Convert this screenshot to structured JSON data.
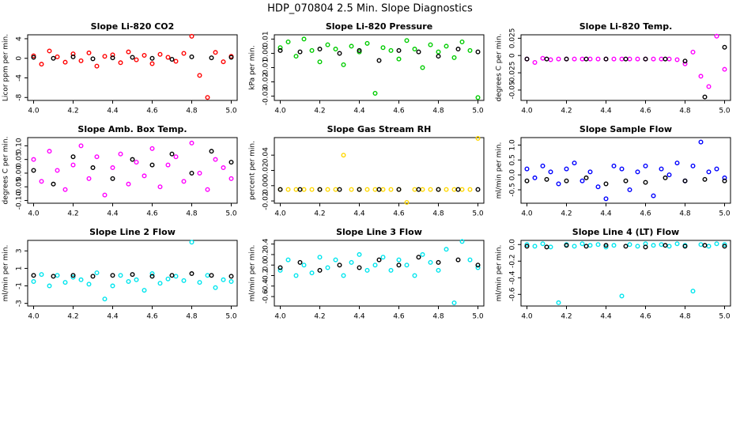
{
  "title": "HDP_070804  2.5 Min. Slope Diagnostics",
  "chart_data": [
    {
      "type": "scatter",
      "title": "Slope Li-820 CO2",
      "ylabel": "Licor ppm per min.",
      "xlim": [
        3.97,
        5.03
      ],
      "xticks": [
        {
          "value": 4,
          "label": "4.0"
        },
        4.2,
        4.4,
        4.6,
        4.8,
        {
          "value": 5,
          "label": "5.0"
        }
      ],
      "ylim": [
        -8.6,
        4.8
      ],
      "yticks": [
        -8,
        -4,
        0,
        4
      ],
      "series": [
        {
          "color": "#ff0000",
          "x": [
            4.0,
            4.04,
            4.08,
            4.12,
            4.16,
            4.2,
            4.24,
            4.28,
            4.32,
            4.36,
            4.4,
            4.44,
            4.48,
            4.52,
            4.56,
            4.6,
            4.64,
            4.68,
            4.72,
            4.76,
            4.8,
            4.84,
            4.88,
            4.92,
            4.96,
            5.0
          ],
          "values": [
            0.5,
            -1.2,
            1.5,
            0.3,
            -0.8,
            0.9,
            -0.5,
            1.1,
            -1.6,
            0.4,
            0.7,
            -0.9,
            1.3,
            -0.3,
            0.6,
            -1.1,
            0.8,
            0.2,
            -0.6,
            1.0,
            4.5,
            -3.5,
            -8,
            1.2,
            -0.7,
            0.4
          ]
        },
        {
          "color": "#000000",
          "x": [
            4.0,
            4.1,
            4.2,
            4.3,
            4.4,
            4.5,
            4.6,
            4.7,
            4.8,
            4.9,
            5.0
          ],
          "values": [
            0.2,
            0,
            0.3,
            -0.1,
            0.1,
            0.2,
            0,
            -0.2,
            0.3,
            0.1,
            0.2
          ]
        }
      ]
    },
    {
      "type": "scatter",
      "title": "Slope Li-820 Pressure",
      "ylabel": "kPa per min.",
      "xlim": [
        3.97,
        5.03
      ],
      "xticks": [
        {
          "value": 4,
          "label": "4.0"
        },
        4.2,
        4.4,
        4.6,
        4.8,
        {
          "value": 5,
          "label": "5.0"
        }
      ],
      "ylim": [
        -0.033,
        0.013
      ],
      "yticks": [
        -0.03,
        -0.02,
        -0.01,
        {
          "value": 0,
          "label": "0.00"
        },
        0.01
      ],
      "series": [
        {
          "color": "#00cc00",
          "x": [
            4.0,
            4.04,
            4.08,
            4.12,
            4.16,
            4.2,
            4.24,
            4.28,
            4.32,
            4.36,
            4.4,
            4.44,
            4.48,
            4.52,
            4.56,
            4.6,
            4.64,
            4.68,
            4.72,
            4.76,
            4.8,
            4.84,
            4.88,
            4.92,
            4.96,
            5.0
          ],
          "values": [
            0.004,
            0.008,
            -0.002,
            0.01,
            0.002,
            -0.006,
            0.006,
            0.003,
            -0.008,
            0.005,
            0.001,
            0.007,
            -0.028,
            0.004,
            0.002,
            -0.004,
            0.009,
            0.003,
            -0.01,
            0.006,
            0.001,
            0.005,
            -0.003,
            0.008,
            0.002,
            -0.031
          ]
        },
        {
          "color": "#000000",
          "x": [
            4.0,
            4.1,
            4.2,
            4.3,
            4.4,
            4.5,
            4.6,
            4.7,
            4.8,
            4.9,
            5.0
          ],
          "values": [
            0.002,
            0.001,
            0.003,
            0,
            0.002,
            -0.005,
            0.002,
            0.001,
            -0.002,
            0.003,
            0.001
          ]
        }
      ]
    },
    {
      "type": "scatter",
      "title": "Slope Li-820 Temp.",
      "ylabel": "degrees C per min.",
      "xlim": [
        3.97,
        5.03
      ],
      "xticks": [
        {
          "value": 4,
          "label": "4.0"
        },
        4.2,
        4.4,
        4.6,
        4.8,
        {
          "value": 5,
          "label": "5.0"
        }
      ],
      "ylim": [
        -0.065,
        0.03
      ],
      "yticks": [
        -0.05,
        -0.025,
        0,
        0.025
      ],
      "series": [
        {
          "color": "#ff00ff",
          "x": [
            4.0,
            4.04,
            4.08,
            4.12,
            4.16,
            4.2,
            4.24,
            4.28,
            4.32,
            4.36,
            4.4,
            4.44,
            4.48,
            4.52,
            4.56,
            4.6,
            4.64,
            4.68,
            4.72,
            4.76,
            4.8,
            4.84,
            4.88,
            4.92,
            4.96,
            5.0
          ],
          "values": [
            -0.005,
            -0.01,
            -0.004,
            -0.006,
            -0.005,
            -0.005,
            -0.005,
            -0.005,
            -0.005,
            -0.005,
            -0.005,
            -0.005,
            -0.005,
            -0.005,
            -0.005,
            -0.005,
            -0.005,
            -0.005,
            -0.005,
            -0.006,
            -0.012,
            0.005,
            -0.03,
            -0.045,
            0.028,
            -0.02
          ]
        },
        {
          "color": "#000000",
          "x": [
            4.0,
            4.1,
            4.2,
            4.3,
            4.4,
            4.5,
            4.6,
            4.7,
            4.8,
            4.9,
            5.0
          ],
          "values": [
            -0.005,
            -0.005,
            -0.005,
            -0.005,
            -0.005,
            -0.005,
            -0.005,
            -0.005,
            -0.008,
            -0.06,
            0.012
          ]
        }
      ]
    },
    {
      "type": "scatter",
      "title": "Slope Amb. Box Temp.",
      "ylabel": "degrees C per min.",
      "xlim": [
        3.97,
        5.03
      ],
      "xticks": [
        {
          "value": 4,
          "label": "4.0"
        },
        4.2,
        4.4,
        4.6,
        4.8,
        {
          "value": 5,
          "label": "5.0"
        }
      ],
      "ylim": [
        -0.11,
        0.13
      ],
      "yticks": [
        {
          "value": -0.1,
          "label": "-0.10"
        },
        -0.05,
        {
          "value": 0,
          "label": "0.00"
        },
        0.05,
        {
          "value": 0.1,
          "label": "0.10"
        }
      ],
      "series": [
        {
          "color": "#ff00ff",
          "x": [
            4.0,
            4.04,
            4.08,
            4.12,
            4.16,
            4.2,
            4.24,
            4.28,
            4.32,
            4.36,
            4.4,
            4.44,
            4.48,
            4.52,
            4.56,
            4.6,
            4.64,
            4.68,
            4.72,
            4.76,
            4.8,
            4.84,
            4.88,
            4.92,
            4.96,
            5.0
          ],
          "values": [
            0.05,
            -0.03,
            0.08,
            0.01,
            -0.06,
            0.03,
            0.1,
            -0.02,
            0.06,
            -0.08,
            0.02,
            0.07,
            -0.04,
            0.04,
            -0.01,
            0.09,
            -0.05,
            0.03,
            0.06,
            -0.03,
            0.11,
            0.0,
            -0.06,
            0.05,
            0.02,
            -0.02
          ]
        },
        {
          "color": "#000000",
          "x": [
            4.0,
            4.1,
            4.2,
            4.3,
            4.4,
            4.5,
            4.6,
            4.7,
            4.8,
            4.9,
            5.0
          ],
          "values": [
            0.01,
            -0.04,
            0.06,
            0.02,
            -0.02,
            0.05,
            0.03,
            0.07,
            0.0,
            0.08,
            0.04
          ]
        }
      ]
    },
    {
      "type": "scatter",
      "title": "Slope Gas Stream RH",
      "ylabel": "percent per min.",
      "xlim": [
        3.97,
        5.03
      ],
      "xticks": [
        {
          "value": 4,
          "label": "4.0"
        },
        4.2,
        4.4,
        4.6,
        4.8,
        {
          "value": 5,
          "label": "5.0"
        }
      ],
      "ylim": [
        -0.023,
        0.063
      ],
      "yticks": [
        -0.02,
        {
          "value": 0,
          "label": "0.00"
        },
        0.02,
        0.04
      ],
      "series": [
        {
          "color": "#ffd700",
          "x": [
            4.0,
            4.04,
            4.08,
            4.12,
            4.16,
            4.2,
            4.24,
            4.28,
            4.32,
            4.36,
            4.4,
            4.44,
            4.48,
            4.52,
            4.56,
            4.6,
            4.64,
            4.68,
            4.72,
            4.76,
            4.8,
            4.84,
            4.88,
            4.92,
            4.96,
            5.0
          ],
          "values": [
            -0.005,
            -0.005,
            -0.005,
            -0.005,
            -0.005,
            -0.005,
            -0.005,
            -0.005,
            0.04,
            -0.005,
            -0.005,
            -0.005,
            -0.005,
            -0.005,
            -0.005,
            -0.005,
            -0.022,
            -0.005,
            -0.005,
            -0.005,
            -0.005,
            -0.005,
            -0.005,
            -0.005,
            -0.005,
            0.062
          ]
        },
        {
          "color": "#000000",
          "x": [
            4.0,
            4.1,
            4.2,
            4.3,
            4.4,
            4.5,
            4.6,
            4.7,
            4.8,
            4.9,
            5.0
          ],
          "values": [
            -0.005,
            -0.005,
            -0.005,
            -0.005,
            -0.005,
            -0.005,
            -0.005,
            -0.005,
            -0.005,
            -0.005,
            -0.005
          ]
        }
      ]
    },
    {
      "type": "scatter",
      "title": "Slope Sample Flow",
      "ylabel": "ml/min per min.",
      "xlim": [
        3.97,
        5.03
      ],
      "xticks": [
        {
          "value": 4,
          "label": "4.0"
        },
        4.2,
        4.4,
        4.6,
        4.8,
        {
          "value": 5,
          "label": "5.0"
        }
      ],
      "ylim": [
        -0.95,
        1.25
      ],
      "yticks": [
        -0.5,
        {
          "value": 0,
          "label": "0.0"
        },
        0.5,
        {
          "value": 1,
          "label": "1.0"
        }
      ],
      "series": [
        {
          "color": "#0000ff",
          "x": [
            4.0,
            4.04,
            4.08,
            4.12,
            4.16,
            4.2,
            4.24,
            4.28,
            4.32,
            4.36,
            4.4,
            4.44,
            4.48,
            4.52,
            4.56,
            4.6,
            4.64,
            4.68,
            4.72,
            4.76,
            4.8,
            4.84,
            4.88,
            4.92,
            4.96,
            5.0
          ],
          "values": [
            0.2,
            -0.1,
            0.3,
            0.1,
            -0.3,
            0.2,
            0.4,
            -0.2,
            0.1,
            -0.4,
            -0.8,
            0.3,
            0.2,
            -0.5,
            0.1,
            0.3,
            -0.7,
            0.2,
            0.0,
            0.4,
            -0.2,
            0.3,
            1.1,
            0.1,
            0.2,
            -0.1
          ]
        },
        {
          "color": "#000000",
          "x": [
            4.0,
            4.1,
            4.2,
            4.3,
            4.4,
            4.5,
            4.6,
            4.7,
            4.8,
            4.9,
            5.0
          ],
          "values": [
            -0.2,
            -0.15,
            -0.2,
            -0.1,
            -0.3,
            -0.2,
            -0.25,
            -0.1,
            -0.2,
            -0.15,
            -0.2
          ]
        }
      ]
    },
    {
      "type": "scatter",
      "title": "Slope Line 2 Flow",
      "ylabel": "ml/min per min.",
      "xlim": [
        3.97,
        5.03
      ],
      "xticks": [
        {
          "value": 4,
          "label": "4.0"
        },
        4.2,
        4.4,
        4.6,
        4.8,
        {
          "value": 5,
          "label": "5.0"
        }
      ],
      "ylim": [
        -3.3,
        4.2
      ],
      "yticks": [
        -3,
        -1,
        1,
        3
      ],
      "series": [
        {
          "color": "#00e5ee",
          "x": [
            4.0,
            4.04,
            4.08,
            4.12,
            4.16,
            4.2,
            4.24,
            4.28,
            4.32,
            4.36,
            4.4,
            4.44,
            4.48,
            4.52,
            4.56,
            4.6,
            4.64,
            4.68,
            4.72,
            4.76,
            4.8,
            4.84,
            4.88,
            4.92,
            4.96,
            5.0
          ],
          "values": [
            -0.5,
            0.3,
            -1.0,
            0.2,
            -0.6,
            0.0,
            -0.3,
            -0.8,
            0.5,
            -2.5,
            -1.0,
            0.2,
            -0.5,
            -0.3,
            -1.5,
            0.4,
            -0.7,
            -0.2,
            0.1,
            -0.4,
            4.0,
            -0.6,
            0.2,
            -1.2,
            -0.3,
            -0.5
          ]
        },
        {
          "color": "#000000",
          "x": [
            4.0,
            4.1,
            4.2,
            4.3,
            4.4,
            4.5,
            4.6,
            4.7,
            4.8,
            4.9,
            5.0
          ],
          "values": [
            0.2,
            0.1,
            0.2,
            0.1,
            0.2,
            0.3,
            0.1,
            0.2,
            0.4,
            0.2,
            0.1
          ]
        }
      ]
    },
    {
      "type": "scatter",
      "title": "Slope Line 3 Flow",
      "ylabel": "ml/min per min.",
      "xlim": [
        3.97,
        5.03
      ],
      "xticks": [
        {
          "value": 4,
          "label": "4.0"
        },
        4.2,
        4.4,
        4.6,
        4.8,
        {
          "value": 5,
          "label": "5.0"
        }
      ],
      "ylim": [
        -0.78,
        0.47
      ],
      "yticks": [
        -0.6,
        -0.4,
        -0.2,
        {
          "value": 0,
          "label": "0.0"
        },
        0.2,
        0.4
      ],
      "series": [
        {
          "color": "#00e5ee",
          "x": [
            4.0,
            4.04,
            4.08,
            4.12,
            4.16,
            4.2,
            4.24,
            4.28,
            4.32,
            4.36,
            4.4,
            4.44,
            4.48,
            4.52,
            4.56,
            4.6,
            4.64,
            4.68,
            4.72,
            4.76,
            4.8,
            4.84,
            4.88,
            4.92,
            4.96,
            5.0
          ],
          "values": [
            -0.1,
            0.1,
            -0.2,
            0.0,
            -0.15,
            0.15,
            -0.05,
            0.1,
            -0.2,
            0.05,
            0.2,
            -0.1,
            0.0,
            0.15,
            -0.1,
            0.1,
            0.0,
            -0.2,
            0.2,
            0.05,
            -0.1,
            0.3,
            -0.72,
            0.45,
            0.1,
            -0.05
          ]
        },
        {
          "color": "#000000",
          "x": [
            4.0,
            4.1,
            4.2,
            4.3,
            4.4,
            4.5,
            4.6,
            4.7,
            4.8,
            4.9,
            5.0
          ],
          "values": [
            -0.05,
            0.05,
            -0.1,
            0.0,
            -0.05,
            0.1,
            0.0,
            0.15,
            0.05,
            0.1,
            0.0
          ]
        }
      ]
    },
    {
      "type": "scatter",
      "title": "Slope Line 4 (LT) Flow",
      "ylabel": "ml/min per min.",
      "xlim": [
        3.97,
        5.03
      ],
      "xticks": [
        {
          "value": 4,
          "label": "4.0"
        },
        4.2,
        4.4,
        4.6,
        4.8,
        {
          "value": 5,
          "label": "5.0"
        }
      ],
      "ylim": [
        -0.74,
        0.05
      ],
      "yticks": [
        -0.6,
        -0.4,
        -0.2,
        {
          "value": 0,
          "label": "0.0"
        }
      ],
      "series": [
        {
          "color": "#00e5ee",
          "x": [
            4.0,
            4.04,
            4.08,
            4.12,
            4.16,
            4.2,
            4.24,
            4.28,
            4.32,
            4.36,
            4.4,
            4.44,
            4.48,
            4.52,
            4.56,
            4.6,
            4.64,
            4.68,
            4.72,
            4.76,
            4.8,
            4.84,
            4.88,
            4.92,
            4.96,
            5.0
          ],
          "values": [
            0.0,
            -0.02,
            0.01,
            -0.03,
            -0.7,
            0.0,
            -0.02,
            0.01,
            -0.01,
            0.0,
            -0.03,
            -0.01,
            -0.62,
            0.0,
            -0.02,
            0.01,
            -0.01,
            0.0,
            -0.02,
            0.01,
            -0.01,
            -0.56,
            0.0,
            -0.02,
            0.01,
            0.0
          ]
        },
        {
          "color": "#000000",
          "x": [
            4.0,
            4.1,
            4.2,
            4.3,
            4.4,
            4.5,
            4.6,
            4.7,
            4.8,
            4.9,
            5.0
          ],
          "values": [
            -0.02,
            -0.03,
            -0.01,
            -0.02,
            -0.01,
            -0.02,
            -0.03,
            -0.01,
            -0.02,
            -0.01,
            -0.02
          ]
        }
      ]
    }
  ]
}
